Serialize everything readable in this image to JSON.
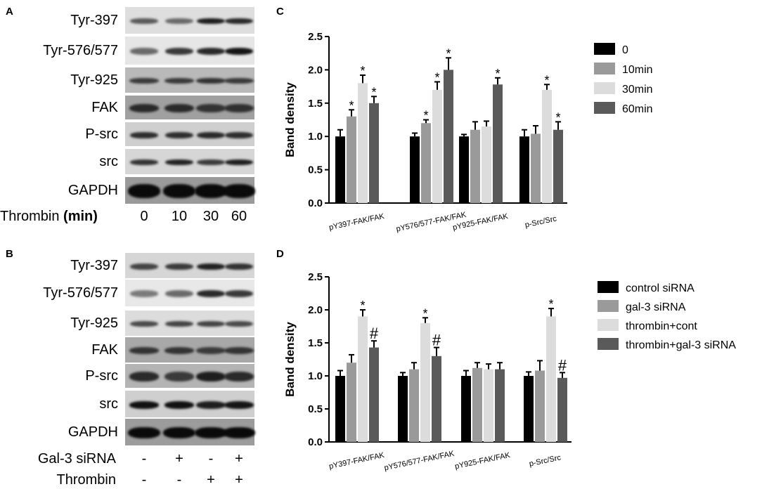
{
  "panels": {
    "A": {
      "letter": "A",
      "blots": [
        "Tyr-397",
        "Tyr-576/577",
        "Tyr-925",
        "FAK",
        "P-src",
        "src",
        "GAPDH"
      ],
      "row_label": "Thrombin ",
      "row_unit": "(min)",
      "lanes": [
        "0",
        "10",
        "30",
        "60"
      ]
    },
    "B": {
      "letter": "B",
      "blots": [
        "Tyr-397",
        "Tyr-576/577",
        "Tyr-925",
        "FAK",
        "P-src",
        "src",
        "GAPDH"
      ],
      "rows": [
        {
          "label": "Gal-3 siRNA",
          "marks": [
            "-",
            "+",
            "-",
            "+"
          ]
        },
        {
          "label": "Thrombin",
          "marks": [
            "-",
            "-",
            "+",
            "+"
          ]
        }
      ]
    },
    "C": {
      "letter": "C"
    },
    "D": {
      "letter": "D"
    }
  },
  "chart_data": [
    {
      "type": "bar",
      "panel": "C",
      "ylabel": "Band density",
      "ylim": [
        0,
        2.5
      ],
      "yticks": [
        "0.0",
        "0.5",
        "1.0",
        "1.5",
        "2.0",
        "2.5"
      ],
      "categories": [
        "pY397-FAK/FAK",
        "pY576/577-FAK/FAK",
        "pY925-FAK/FAK",
        "p-Src/Src"
      ],
      "legend_position": "top-right",
      "series": [
        {
          "name": "0",
          "color": "#000000",
          "values": [
            1.0,
            1.0,
            1.0,
            1.0
          ],
          "errors": [
            0.1,
            0.05,
            0.03,
            0.1
          ],
          "marks": [
            "",
            "",
            "",
            ""
          ]
        },
        {
          "name": "10min",
          "color": "#9a9a9a",
          "values": [
            1.3,
            1.2,
            1.1,
            1.04
          ],
          "errors": [
            0.1,
            0.05,
            0.12,
            0.12
          ],
          "marks": [
            "*",
            "*",
            "",
            ""
          ]
        },
        {
          "name": "30min",
          "color": "#dcdcdc",
          "values": [
            1.8,
            1.7,
            1.15,
            1.7
          ],
          "errors": [
            0.12,
            0.12,
            0.08,
            0.08
          ],
          "marks": [
            "*",
            "*",
            "",
            "*"
          ]
        },
        {
          "name": "60min",
          "color": "#5a5a5a",
          "values": [
            1.5,
            2.0,
            1.78,
            1.1
          ],
          "errors": [
            0.1,
            0.18,
            0.1,
            0.12
          ],
          "marks": [
            "*",
            "*",
            "*",
            "*"
          ]
        }
      ]
    },
    {
      "type": "bar",
      "panel": "D",
      "ylabel": "Band density",
      "ylim": [
        0,
        2.5
      ],
      "yticks": [
        "0.0",
        "0.5",
        "1.0",
        "1.5",
        "2.0",
        "2.5"
      ],
      "categories": [
        "pY397-FAK/FAK",
        "pY576/577-FAK/FAK",
        "pY925-FAK/FAK",
        "p-Src/Src"
      ],
      "legend_position": "top-right",
      "series": [
        {
          "name": "control siRNA",
          "color": "#000000",
          "values": [
            1.0,
            1.0,
            1.0,
            1.0
          ],
          "errors": [
            0.08,
            0.05,
            0.08,
            0.06
          ],
          "marks": [
            "",
            "",
            "",
            ""
          ]
        },
        {
          "name": "gal-3 siRNA",
          "color": "#9a9a9a",
          "values": [
            1.2,
            1.1,
            1.12,
            1.08
          ],
          "errors": [
            0.12,
            0.1,
            0.08,
            0.15
          ],
          "marks": [
            "",
            "",
            "",
            ""
          ]
        },
        {
          "name": "thrombin+cont",
          "color": "#dcdcdc",
          "values": [
            1.9,
            1.8,
            1.1,
            1.9
          ],
          "errors": [
            0.1,
            0.08,
            0.08,
            0.12
          ],
          "marks": [
            "*",
            "*",
            "",
            "*"
          ]
        },
        {
          "name": "thrombin+gal-3 siRNA",
          "color": "#5a5a5a",
          "values": [
            1.43,
            1.3,
            1.1,
            0.97
          ],
          "errors": [
            0.1,
            0.13,
            0.1,
            0.08
          ],
          "marks": [
            "#",
            "#",
            "",
            "#"
          ]
        }
      ]
    }
  ]
}
